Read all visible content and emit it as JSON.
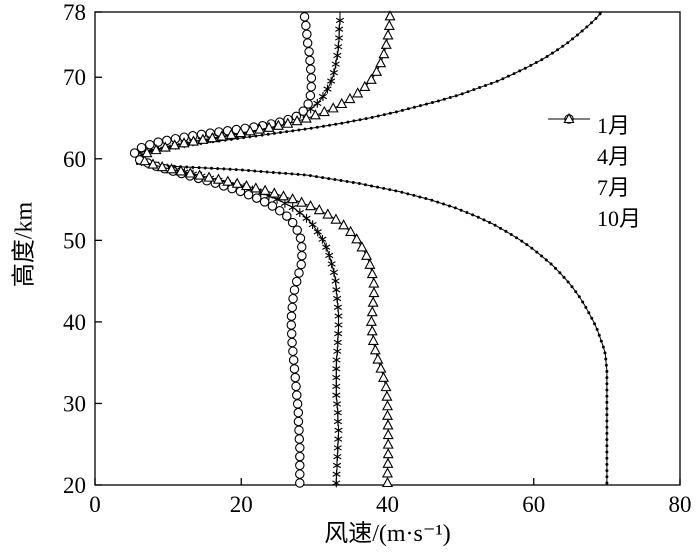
{
  "chart_data": {
    "type": "line",
    "title": "",
    "xlabel": "风速/(m·s⁻¹)",
    "ylabel": "高度/km",
    "xlim": [
      0,
      80
    ],
    "ylim": [
      20,
      78
    ],
    "x_ticks": [
      0,
      20,
      40,
      60,
      80
    ],
    "y_ticks": [
      20,
      30,
      40,
      50,
      60,
      70,
      78
    ],
    "grid": false,
    "legend_position": "inside-upper-right",
    "line_color": "#000000",
    "background": "#ffffff",
    "series": [
      {
        "id": "jan",
        "name": "1月",
        "marker": "dot",
        "points": [
          [
            70,
            20
          ],
          [
            70,
            21
          ],
          [
            70,
            22
          ],
          [
            70,
            23
          ],
          [
            70,
            24
          ],
          [
            70,
            25
          ],
          [
            70,
            26
          ],
          [
            70,
            27
          ],
          [
            70,
            28
          ],
          [
            70,
            29
          ],
          [
            70,
            30
          ],
          [
            70,
            31
          ],
          [
            70,
            32
          ],
          [
            70,
            33
          ],
          [
            70,
            34
          ],
          [
            69.9,
            35
          ],
          [
            69.8,
            36
          ],
          [
            69.5,
            37
          ],
          [
            69.1,
            38
          ],
          [
            68.7,
            39
          ],
          [
            68.2,
            40
          ],
          [
            67.6,
            41
          ],
          [
            67,
            42
          ],
          [
            66.3,
            43
          ],
          [
            65.5,
            44
          ],
          [
            64.6,
            45
          ],
          [
            63.6,
            46
          ],
          [
            62.5,
            47
          ],
          [
            61.2,
            48
          ],
          [
            59.8,
            49
          ],
          [
            58.2,
            50
          ],
          [
            56.4,
            51
          ],
          [
            54.4,
            52
          ],
          [
            52,
            53
          ],
          [
            49.2,
            54
          ],
          [
            45.8,
            55
          ],
          [
            41.5,
            56
          ],
          [
            36,
            57
          ],
          [
            29,
            58
          ],
          [
            19,
            58.7
          ],
          [
            10,
            59.1
          ],
          [
            5.8,
            59.4
          ],
          [
            5.8,
            60.7
          ],
          [
            8,
            61.1
          ],
          [
            11,
            61.5
          ],
          [
            14.5,
            61.9
          ],
          [
            18,
            62.3
          ],
          [
            22,
            62.8
          ],
          [
            26,
            63.3
          ],
          [
            30,
            63.8
          ],
          [
            34,
            64.4
          ],
          [
            37.5,
            65
          ],
          [
            41,
            65.7
          ],
          [
            44,
            66.4
          ],
          [
            47,
            67.1
          ],
          [
            50,
            67.9
          ],
          [
            52.5,
            68.7
          ],
          [
            55,
            69.5
          ],
          [
            57.2,
            70.4
          ],
          [
            59.3,
            71.3
          ],
          [
            61.2,
            72.2
          ],
          [
            63,
            73.2
          ],
          [
            64.6,
            74.2
          ],
          [
            66,
            75.2
          ],
          [
            67.3,
            76.2
          ],
          [
            68.4,
            77.1
          ],
          [
            69.3,
            78
          ]
        ]
      },
      {
        "id": "apr",
        "name": "4月",
        "marker": "asterisk",
        "points": [
          [
            33,
            20
          ],
          [
            33,
            21
          ],
          [
            33.1,
            22
          ],
          [
            33.1,
            23
          ],
          [
            33.2,
            24
          ],
          [
            33.2,
            25
          ],
          [
            33.3,
            26
          ],
          [
            33.3,
            27
          ],
          [
            33.2,
            28
          ],
          [
            33.2,
            29
          ],
          [
            33.1,
            30
          ],
          [
            33,
            31
          ],
          [
            33,
            32
          ],
          [
            33,
            33
          ],
          [
            33,
            34
          ],
          [
            33,
            35
          ],
          [
            33.1,
            36
          ],
          [
            33.2,
            37
          ],
          [
            33.2,
            38
          ],
          [
            33.3,
            39
          ],
          [
            33.3,
            40
          ],
          [
            33.3,
            41
          ],
          [
            33.2,
            42
          ],
          [
            33.1,
            43
          ],
          [
            33,
            44
          ],
          [
            32.9,
            45
          ],
          [
            32.7,
            46
          ],
          [
            32.4,
            47
          ],
          [
            32.1,
            48
          ],
          [
            31.7,
            49
          ],
          [
            31.2,
            50
          ],
          [
            30.5,
            51
          ],
          [
            29.7,
            52
          ],
          [
            28.6,
            53
          ],
          [
            27.1,
            54
          ],
          [
            25,
            55
          ],
          [
            22.2,
            56
          ],
          [
            18.6,
            57
          ],
          [
            14,
            58
          ],
          [
            9.2,
            59
          ],
          [
            6.2,
            59.7
          ],
          [
            6.2,
            60.4
          ],
          [
            7.8,
            61
          ],
          [
            10.2,
            61.5
          ],
          [
            13,
            62
          ],
          [
            16,
            62.5
          ],
          [
            19,
            63
          ],
          [
            21.8,
            63.5
          ],
          [
            24.2,
            64
          ],
          [
            26.2,
            64.6
          ],
          [
            27.9,
            65.2
          ],
          [
            29.2,
            65.9
          ],
          [
            30.2,
            66.6
          ],
          [
            31,
            67.4
          ],
          [
            31.6,
            68.2
          ],
          [
            32.1,
            69.1
          ],
          [
            32.5,
            70
          ],
          [
            32.8,
            71
          ],
          [
            33,
            72
          ],
          [
            33.2,
            73
          ],
          [
            33.3,
            74
          ],
          [
            33.4,
            75
          ],
          [
            33.4,
            76
          ],
          [
            33.5,
            77
          ],
          [
            33.5,
            78
          ]
        ]
      },
      {
        "id": "jul",
        "name": "7月",
        "marker": "circle",
        "points": [
          [
            28,
            20
          ],
          [
            28,
            21
          ],
          [
            28,
            22
          ],
          [
            28,
            23
          ],
          [
            28,
            24
          ],
          [
            28,
            25
          ],
          [
            27.9,
            26
          ],
          [
            27.9,
            27
          ],
          [
            27.8,
            28
          ],
          [
            27.8,
            29
          ],
          [
            27.7,
            30
          ],
          [
            27.6,
            31
          ],
          [
            27.5,
            32
          ],
          [
            27.4,
            33
          ],
          [
            27.3,
            34
          ],
          [
            27.2,
            35
          ],
          [
            27.1,
            36
          ],
          [
            27,
            37
          ],
          [
            26.9,
            38
          ],
          [
            26.9,
            39
          ],
          [
            26.8,
            40
          ],
          [
            26.9,
            41
          ],
          [
            27,
            42
          ],
          [
            27.1,
            43
          ],
          [
            27.3,
            44
          ],
          [
            27.6,
            45
          ],
          [
            27.9,
            46
          ],
          [
            28.2,
            47
          ],
          [
            28.3,
            48
          ],
          [
            28.3,
            49
          ],
          [
            28.2,
            50
          ],
          [
            27.8,
            51
          ],
          [
            27.2,
            52
          ],
          [
            26.2,
            53
          ],
          [
            24.7,
            54
          ],
          [
            22.6,
            55
          ],
          [
            19.9,
            56
          ],
          [
            16.5,
            57
          ],
          [
            12.6,
            58
          ],
          [
            8.6,
            59
          ],
          [
            6,
            59.9
          ],
          [
            5.4,
            60.7
          ],
          [
            6.4,
            61.4
          ],
          [
            8.4,
            62
          ],
          [
            11.2,
            62.5
          ],
          [
            14.6,
            63
          ],
          [
            18.6,
            63.5
          ],
          [
            22.6,
            64
          ],
          [
            25.8,
            64.6
          ],
          [
            27.8,
            65.3
          ],
          [
            28.8,
            66.1
          ],
          [
            29.3,
            67
          ],
          [
            29.5,
            68
          ],
          [
            29.6,
            69
          ],
          [
            29.6,
            70
          ],
          [
            29.5,
            71
          ],
          [
            29.4,
            72
          ],
          [
            29.3,
            73
          ],
          [
            29.1,
            74
          ],
          [
            29,
            75
          ],
          [
            28.9,
            76
          ],
          [
            28.7,
            77
          ],
          [
            28.6,
            78
          ]
        ]
      },
      {
        "id": "oct",
        "name": "10月",
        "marker": "triangle",
        "points": [
          [
            40,
            20
          ],
          [
            40,
            21
          ],
          [
            40,
            22
          ],
          [
            40.1,
            23
          ],
          [
            40.1,
            24
          ],
          [
            40.1,
            25
          ],
          [
            40.1,
            26
          ],
          [
            40.1,
            27
          ],
          [
            40,
            28
          ],
          [
            40,
            29
          ],
          [
            40,
            30
          ],
          [
            39.9,
            31
          ],
          [
            39.8,
            32
          ],
          [
            39.5,
            33
          ],
          [
            39.2,
            34
          ],
          [
            38.8,
            35
          ],
          [
            38.5,
            36
          ],
          [
            38.2,
            37
          ],
          [
            38,
            38
          ],
          [
            37.9,
            39
          ],
          [
            37.8,
            40
          ],
          [
            37.9,
            41
          ],
          [
            38,
            42
          ],
          [
            38.1,
            43
          ],
          [
            38.2,
            44
          ],
          [
            38.1,
            45
          ],
          [
            37.9,
            46
          ],
          [
            37.6,
            47
          ],
          [
            37.2,
            48
          ],
          [
            36.6,
            49
          ],
          [
            35.9,
            50
          ],
          [
            35,
            51
          ],
          [
            33.8,
            52
          ],
          [
            32.2,
            53
          ],
          [
            30,
            54
          ],
          [
            27.2,
            55
          ],
          [
            23.6,
            56
          ],
          [
            19.2,
            57
          ],
          [
            14,
            58
          ],
          [
            9,
            59
          ],
          [
            6.8,
            59.6
          ],
          [
            6.8,
            60.6
          ],
          [
            8.8,
            61.2
          ],
          [
            11.6,
            61.8
          ],
          [
            14.6,
            62.3
          ],
          [
            17.8,
            62.8
          ],
          [
            20.8,
            63.3
          ],
          [
            23.8,
            63.8
          ],
          [
            26.4,
            64.3
          ],
          [
            28.8,
            64.9
          ],
          [
            31,
            65.6
          ],
          [
            32.9,
            66.3
          ],
          [
            34.5,
            67.1
          ],
          [
            35.9,
            68
          ],
          [
            37,
            68.9
          ],
          [
            37.9,
            69.8
          ],
          [
            38.6,
            70.8
          ],
          [
            39.1,
            71.8
          ],
          [
            39.5,
            72.8
          ],
          [
            39.8,
            73.8
          ],
          [
            40,
            74.8
          ],
          [
            40.2,
            75.8
          ],
          [
            40.3,
            76.9
          ],
          [
            40.4,
            78
          ]
        ]
      }
    ]
  }
}
